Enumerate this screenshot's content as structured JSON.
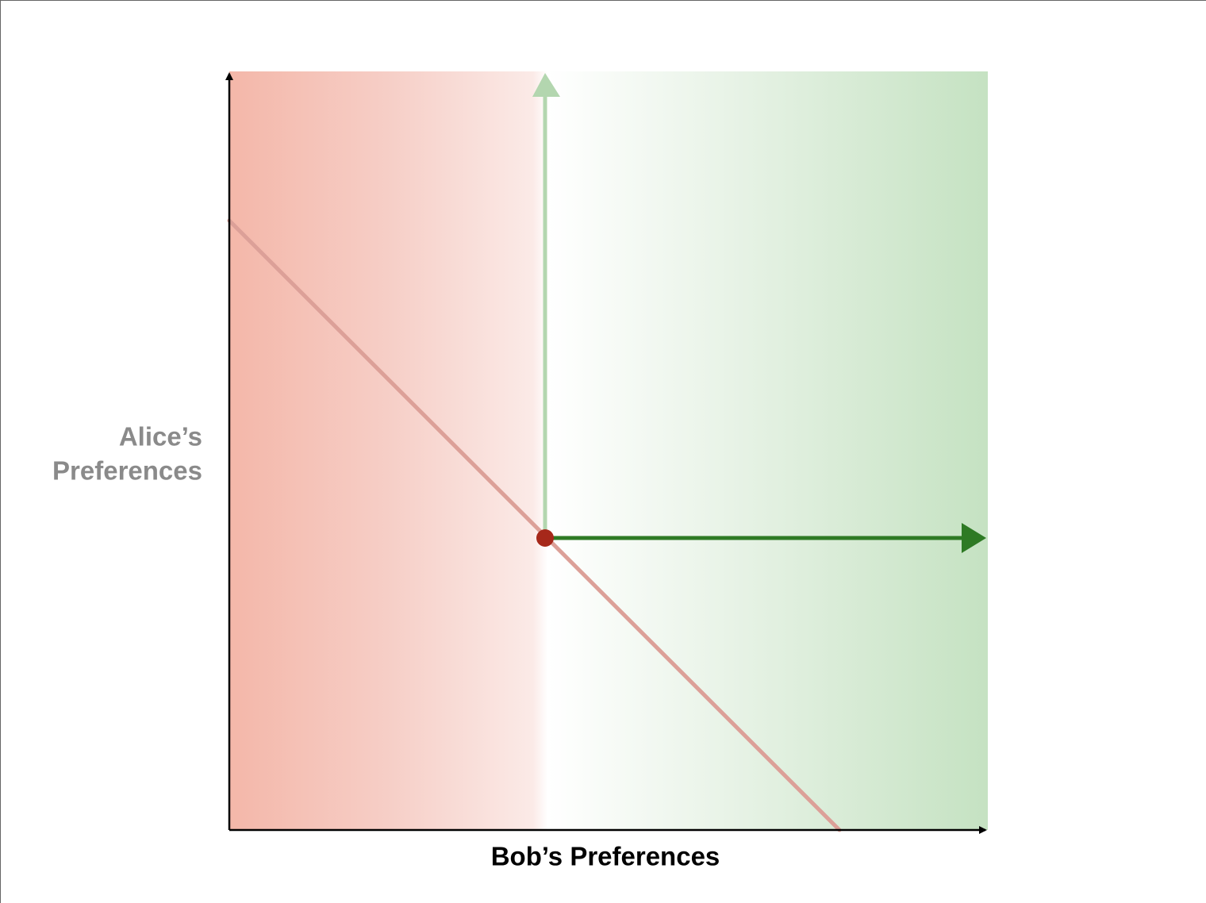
{
  "y_axis_label": {
    "lines": [
      "Alice’s",
      "Preferences"
    ]
  },
  "x_axis_label": "Bob’s Preferences"
}
